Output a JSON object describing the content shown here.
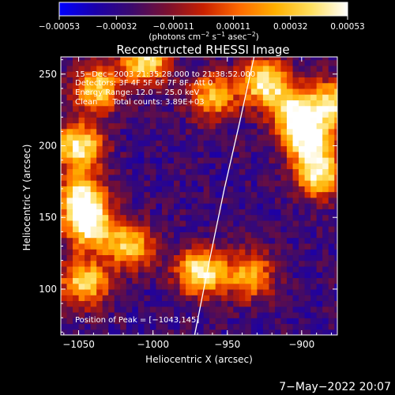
{
  "chart_data": {
    "type": "heatmap",
    "title": "Reconstructed RHESSI Image",
    "xlabel": "Heliocentric X (arcsec)",
    "ylabel": "Heliocentric Y (arcsec)",
    "xlim": [
      -1062,
      -876
    ],
    "ylim": [
      68,
      262
    ],
    "x_ticks": [
      -1050,
      -1000,
      -950,
      -900
    ],
    "x_tick_labels": [
      "−1050",
      "−1000",
      "−950",
      "−900"
    ],
    "y_ticks": [
      100,
      150,
      200,
      250
    ],
    "y_tick_labels": [
      "100",
      "150",
      "200",
      "250"
    ],
    "colorbar": {
      "range": [
        -0.00053,
        0.00053
      ],
      "tick_values": [
        -0.00053,
        -0.00032,
        -0.00011,
        0.00011,
        0.00032,
        0.00053
      ],
      "tick_labels": [
        "−0.00053",
        "−0.00032",
        "−0.00011",
        "0.00011",
        "0.00032",
        "0.00053"
      ],
      "unit_text": "(photons cm",
      "unit_sup1": "−2",
      "unit_mid": " s",
      "unit_sup2": "−1",
      "unit_end": " asec",
      "unit_sup3": "−2",
      "unit_close": ")",
      "colors": [
        "#0000ff",
        "#1a00aa",
        "#3b0a6e",
        "#7a1030",
        "#c82000",
        "#ff6a00",
        "#ffb000",
        "#ffe060",
        "#ffffff"
      ]
    },
    "annotations": [
      "15−Dec−2003 21:35:28.000 to 21:38:52.000",
      "Detectors: 3F 4F 5F 6F 7F 8F, Att 0",
      "Energy Range: 12.0 − 25.0 keV",
      "Clean      Total counts: 3.89E+03"
    ],
    "peak_label": "Position of Peak = [−1043,145]",
    "limb_points": [
      [
        -972,
        68
      ],
      [
        -962,
        120
      ],
      [
        -952,
        170
      ],
      [
        -942,
        215
      ],
      [
        -932,
        262
      ]
    ],
    "sources": [
      {
        "x": -1050,
        "y": 200,
        "amp": 0.0005
      },
      {
        "x": -1048,
        "y": 165,
        "amp": 0.00044
      },
      {
        "x": -1043,
        "y": 145,
        "amp": 0.00053
      },
      {
        "x": -1046,
        "y": 105,
        "amp": 0.0004
      },
      {
        "x": -1038,
        "y": 240,
        "amp": 0.00038
      },
      {
        "x": -1005,
        "y": 260,
        "amp": 0.00045
      },
      {
        "x": -1015,
        "y": 130,
        "amp": 0.00036
      },
      {
        "x": -968,
        "y": 112,
        "amp": 0.0005
      },
      {
        "x": -960,
        "y": 235,
        "amp": 0.0003
      },
      {
        "x": -925,
        "y": 245,
        "amp": 0.00048
      },
      {
        "x": -895,
        "y": 205,
        "amp": 0.00053
      },
      {
        "x": -888,
        "y": 180,
        "amp": 0.00046
      },
      {
        "x": -905,
        "y": 225,
        "amp": 0.00044
      },
      {
        "x": -935,
        "y": 110,
        "amp": 0.0003
      },
      {
        "x": -878,
        "y": 230,
        "amp": 0.0004
      }
    ],
    "background_level": -0.00028
  },
  "footer": {
    "date": "7−May−2022 20:07"
  }
}
